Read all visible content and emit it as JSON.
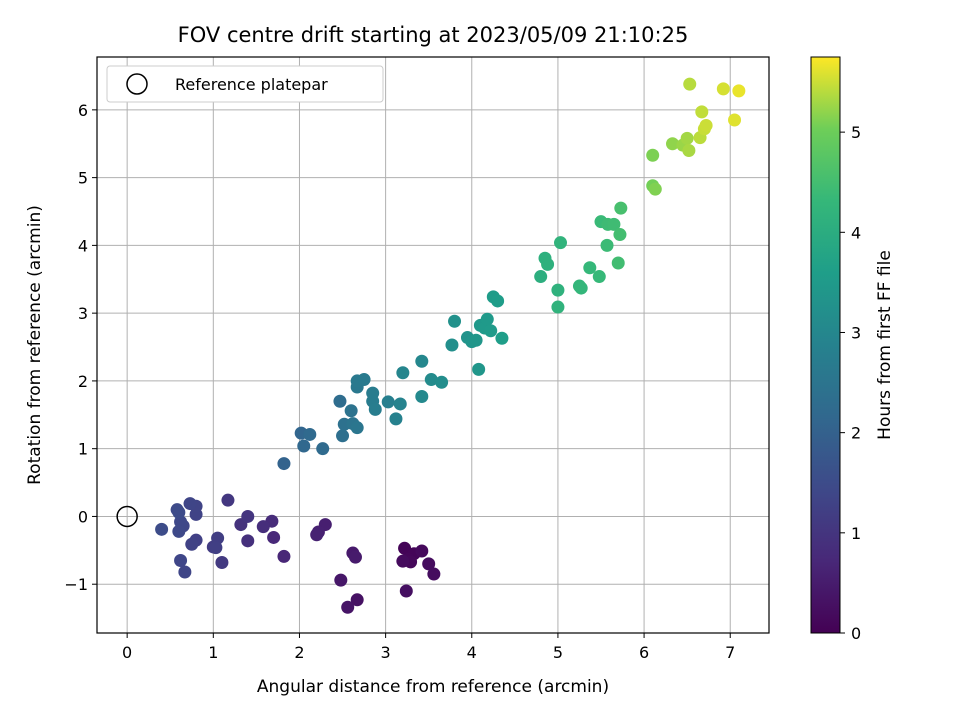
{
  "chart_data": {
    "type": "scatter",
    "title": "FOV centre drift starting at 2023/05/09 21:10:25",
    "xlabel": "Angular distance from reference (arcmin)",
    "ylabel": "Rotation from reference (arcmin)",
    "xlim": [
      -0.35,
      7.45
    ],
    "ylim": [
      -1.72,
      6.78
    ],
    "xticks": [
      0,
      1,
      2,
      3,
      4,
      5,
      6,
      7
    ],
    "yticks": [
      -1,
      0,
      1,
      2,
      3,
      4,
      5,
      6
    ],
    "grid": true,
    "legend": {
      "location": "upper-left",
      "entries": [
        "Reference platepar"
      ]
    },
    "reference_point": {
      "x": 0,
      "y": 0,
      "label": "Reference platepar"
    },
    "colorbar": {
      "label": "Hours from first FF file",
      "colormap": "viridis",
      "range": [
        0,
        5.75
      ],
      "ticks": [
        0,
        1,
        2,
        3,
        4,
        5
      ]
    },
    "points": [
      {
        "x": 3.22,
        "y": -0.47,
        "h": 0.05
      },
      {
        "x": 3.33,
        "y": -0.55,
        "h": 0.08
      },
      {
        "x": 3.26,
        "y": -0.63,
        "h": 0.1
      },
      {
        "x": 3.29,
        "y": -0.67,
        "h": 0.12
      },
      {
        "x": 3.42,
        "y": -0.51,
        "h": 0.15
      },
      {
        "x": 3.2,
        "y": -0.66,
        "h": 0.18
      },
      {
        "x": 3.5,
        "y": -0.7,
        "h": 0.2
      },
      {
        "x": 3.56,
        "y": -0.85,
        "h": 0.22
      },
      {
        "x": 3.24,
        "y": -1.1,
        "h": 0.25
      },
      {
        "x": 2.67,
        "y": -1.23,
        "h": 0.3
      },
      {
        "x": 2.56,
        "y": -1.34,
        "h": 0.35
      },
      {
        "x": 2.48,
        "y": -0.94,
        "h": 0.4
      },
      {
        "x": 2.62,
        "y": -0.54,
        "h": 0.45
      },
      {
        "x": 2.65,
        "y": -0.6,
        "h": 0.48
      },
      {
        "x": 2.3,
        "y": -0.12,
        "h": 0.55
      },
      {
        "x": 2.22,
        "y": -0.23,
        "h": 0.58
      },
      {
        "x": 2.2,
        "y": -0.27,
        "h": 0.6
      },
      {
        "x": 1.82,
        "y": -0.59,
        "h": 0.7
      },
      {
        "x": 1.7,
        "y": -0.31,
        "h": 0.75
      },
      {
        "x": 1.68,
        "y": -0.07,
        "h": 0.8
      },
      {
        "x": 1.58,
        "y": -0.15,
        "h": 0.85
      },
      {
        "x": 1.4,
        "y": -0.36,
        "h": 0.9
      },
      {
        "x": 1.32,
        "y": -0.12,
        "h": 0.95
      },
      {
        "x": 1.4,
        "y": 0.0,
        "h": 1.0
      },
      {
        "x": 1.17,
        "y": 0.24,
        "h": 1.05
      },
      {
        "x": 1.1,
        "y": -0.68,
        "h": 1.1
      },
      {
        "x": 1.0,
        "y": -0.45,
        "h": 1.15
      },
      {
        "x": 1.05,
        "y": -0.32,
        "h": 1.2
      },
      {
        "x": 1.03,
        "y": -0.46,
        "h": 1.22
      },
      {
        "x": 0.8,
        "y": -0.35,
        "h": 1.25
      },
      {
        "x": 0.75,
        "y": -0.41,
        "h": 1.28
      },
      {
        "x": 0.8,
        "y": 0.03,
        "h": 1.3
      },
      {
        "x": 0.8,
        "y": 0.15,
        "h": 1.32
      },
      {
        "x": 0.73,
        "y": 0.19,
        "h": 1.34
      },
      {
        "x": 0.67,
        "y": -0.82,
        "h": 1.36
      },
      {
        "x": 0.62,
        "y": -0.65,
        "h": 1.38
      },
      {
        "x": 0.65,
        "y": -0.14,
        "h": 1.4
      },
      {
        "x": 0.62,
        "y": -0.08,
        "h": 1.42
      },
      {
        "x": 0.6,
        "y": -0.22,
        "h": 1.44
      },
      {
        "x": 0.58,
        "y": 0.1,
        "h": 1.46
      },
      {
        "x": 0.6,
        "y": 0.06,
        "h": 1.48
      },
      {
        "x": 0.4,
        "y": -0.19,
        "h": 1.5
      },
      {
        "x": 1.82,
        "y": 0.78,
        "h": 2.05
      },
      {
        "x": 2.02,
        "y": 1.23,
        "h": 2.1
      },
      {
        "x": 2.05,
        "y": 1.04,
        "h": 2.15
      },
      {
        "x": 2.12,
        "y": 1.21,
        "h": 2.2
      },
      {
        "x": 2.27,
        "y": 1.0,
        "h": 2.25
      },
      {
        "x": 2.47,
        "y": 1.7,
        "h": 2.3
      },
      {
        "x": 2.5,
        "y": 1.19,
        "h": 2.35
      },
      {
        "x": 2.52,
        "y": 1.36,
        "h": 2.4
      },
      {
        "x": 2.6,
        "y": 1.56,
        "h": 2.45
      },
      {
        "x": 2.62,
        "y": 1.37,
        "h": 2.5
      },
      {
        "x": 2.67,
        "y": 1.31,
        "h": 2.55
      },
      {
        "x": 2.67,
        "y": 1.91,
        "h": 2.6
      },
      {
        "x": 2.67,
        "y": 2.0,
        "h": 2.62
      },
      {
        "x": 2.75,
        "y": 2.02,
        "h": 2.65
      },
      {
        "x": 2.85,
        "y": 1.82,
        "h": 2.7
      },
      {
        "x": 2.85,
        "y": 1.7,
        "h": 2.72
      },
      {
        "x": 2.88,
        "y": 1.58,
        "h": 2.75
      },
      {
        "x": 3.03,
        "y": 1.69,
        "h": 2.8
      },
      {
        "x": 3.12,
        "y": 1.44,
        "h": 2.85
      },
      {
        "x": 3.17,
        "y": 1.66,
        "h": 2.9
      },
      {
        "x": 3.2,
        "y": 2.12,
        "h": 2.95
      },
      {
        "x": 3.42,
        "y": 2.29,
        "h": 3.0
      },
      {
        "x": 3.42,
        "y": 1.77,
        "h": 3.05
      },
      {
        "x": 3.53,
        "y": 2.02,
        "h": 3.1
      },
      {
        "x": 3.65,
        "y": 1.98,
        "h": 3.15
      },
      {
        "x": 3.77,
        "y": 2.53,
        "h": 3.2
      },
      {
        "x": 3.8,
        "y": 2.88,
        "h": 3.25
      },
      {
        "x": 3.95,
        "y": 2.64,
        "h": 3.3
      },
      {
        "x": 4.0,
        "y": 2.58,
        "h": 3.35
      },
      {
        "x": 4.05,
        "y": 2.6,
        "h": 3.38
      },
      {
        "x": 4.08,
        "y": 2.17,
        "h": 3.4
      },
      {
        "x": 4.1,
        "y": 2.82,
        "h": 3.45
      },
      {
        "x": 4.15,
        "y": 2.78,
        "h": 3.48
      },
      {
        "x": 4.18,
        "y": 2.91,
        "h": 3.5
      },
      {
        "x": 4.22,
        "y": 2.74,
        "h": 3.52
      },
      {
        "x": 4.25,
        "y": 3.24,
        "h": 3.55
      },
      {
        "x": 4.3,
        "y": 3.18,
        "h": 3.58
      },
      {
        "x": 4.35,
        "y": 2.63,
        "h": 3.6
      },
      {
        "x": 4.8,
        "y": 3.54,
        "h": 4.05
      },
      {
        "x": 4.85,
        "y": 3.81,
        "h": 4.1
      },
      {
        "x": 4.88,
        "y": 3.72,
        "h": 4.12
      },
      {
        "x": 5.0,
        "y": 3.34,
        "h": 4.15
      },
      {
        "x": 5.0,
        "y": 3.09,
        "h": 4.18
      },
      {
        "x": 5.03,
        "y": 4.04,
        "h": 4.2
      },
      {
        "x": 5.25,
        "y": 3.4,
        "h": 4.25
      },
      {
        "x": 5.27,
        "y": 3.37,
        "h": 4.28
      },
      {
        "x": 5.37,
        "y": 3.67,
        "h": 4.3
      },
      {
        "x": 5.48,
        "y": 3.54,
        "h": 4.33
      },
      {
        "x": 5.5,
        "y": 4.35,
        "h": 4.36
      },
      {
        "x": 5.57,
        "y": 4.0,
        "h": 4.4
      },
      {
        "x": 5.58,
        "y": 4.31,
        "h": 4.42
      },
      {
        "x": 5.65,
        "y": 4.31,
        "h": 4.45
      },
      {
        "x": 5.7,
        "y": 3.74,
        "h": 4.48
      },
      {
        "x": 5.72,
        "y": 4.16,
        "h": 4.5
      },
      {
        "x": 5.73,
        "y": 4.55,
        "h": 4.55
      },
      {
        "x": 6.1,
        "y": 4.88,
        "h": 5.05
      },
      {
        "x": 6.1,
        "y": 5.33,
        "h": 5.1
      },
      {
        "x": 6.13,
        "y": 4.83,
        "h": 5.12
      },
      {
        "x": 6.33,
        "y": 5.5,
        "h": 5.2
      },
      {
        "x": 6.45,
        "y": 5.48,
        "h": 5.25
      },
      {
        "x": 6.5,
        "y": 5.58,
        "h": 5.3
      },
      {
        "x": 6.52,
        "y": 5.4,
        "h": 5.33
      },
      {
        "x": 6.53,
        "y": 6.38,
        "h": 5.4
      },
      {
        "x": 6.65,
        "y": 5.59,
        "h": 5.42
      },
      {
        "x": 6.67,
        "y": 5.97,
        "h": 5.45
      },
      {
        "x": 6.7,
        "y": 5.72,
        "h": 5.48
      },
      {
        "x": 6.72,
        "y": 5.77,
        "h": 5.5
      },
      {
        "x": 6.92,
        "y": 6.31,
        "h": 5.55
      },
      {
        "x": 7.05,
        "y": 5.85,
        "h": 5.6
      },
      {
        "x": 7.1,
        "y": 6.28,
        "h": 5.65
      }
    ]
  }
}
